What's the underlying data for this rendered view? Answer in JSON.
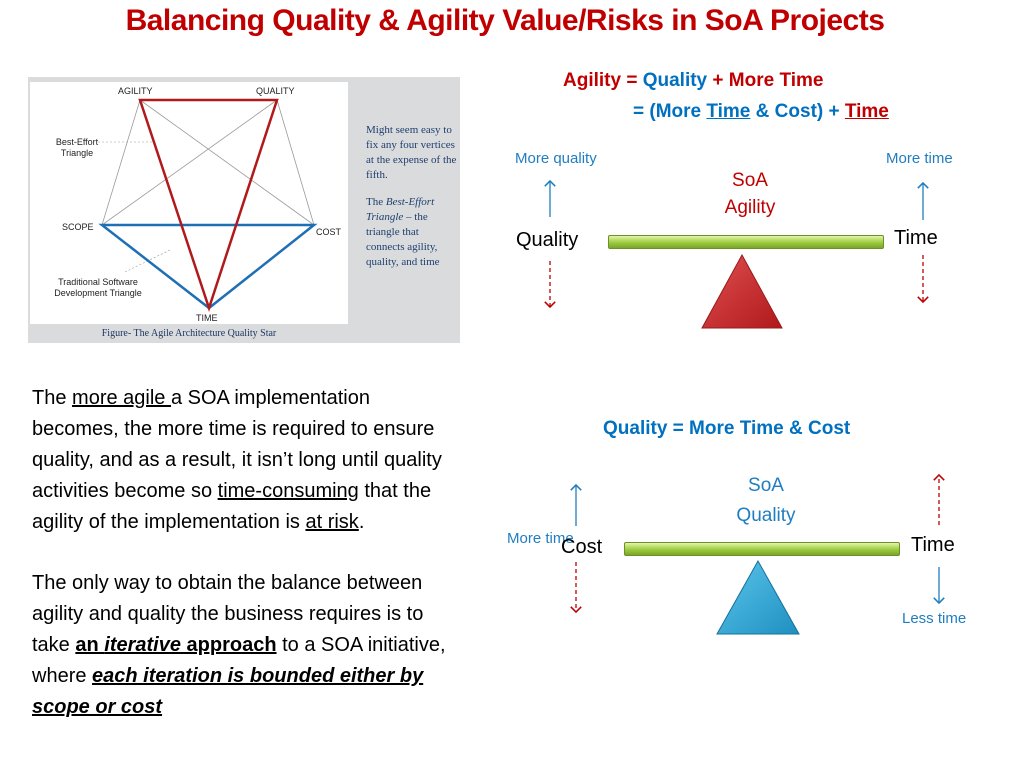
{
  "title": "Balancing Quality & Agility Value/Risks in SoA Projects",
  "figure": {
    "vertices": {
      "agility": "AGILITY",
      "quality": "QUALITY",
      "scope": "SCOPE",
      "cost": "COST",
      "time": "TIME"
    },
    "best_effort_label_1": "Best-Effort",
    "best_effort_label_2": "Triangle",
    "traditional_label_1": "Traditional Software",
    "traditional_label_2": "Development Triangle",
    "caption": "Figure- The Agile Architecture Quality Star",
    "side_note_1": "Might seem easy to fix any four vertices at the expense of the fifth.",
    "side_note_2_prefix": "The ",
    "side_note_2_italic": "Best-Effort Triangle",
    "side_note_2_suffix": " – the triangle that connects agility, quality, and time",
    "colors": {
      "red_triangle": "#b01a1a",
      "blue_triangle": "#1f6fb5"
    }
  },
  "body": {
    "p1_a": "The ",
    "p1_link1": "more agile ",
    "p1_b": "a SOA implementation becomes, the more time is required to ensure quality, and as a result, it isn’t long until quality activities become so ",
    "p1_link2": "time-consuming",
    "p1_c": " that the agility of the implementation is ",
    "p1_link3": "at risk",
    "p1_d": ".",
    "p2_a": "The only way to obtain the balance between agility and quality the business requires is to take ",
    "p2_b1": "an ",
    "p2_b2": "iterative",
    "p2_b3": " approach",
    "p2_c": " to a SOA initiative, where ",
    "p2_d": "each iteration is bounded either by scope or cost"
  },
  "agility_balance": {
    "formula1_a": "Agility = ",
    "formula1_b": "Quality",
    "formula1_c": " + More Time",
    "formula2_a": "= (More ",
    "formula2_b": "Time",
    "formula2_c": " & Cost) + ",
    "formula2_d": "Time",
    "more_quality": "More quality",
    "more_time": "More time",
    "center_label_1": "SoA",
    "center_label_2": "Agility",
    "left_label": "Quality",
    "right_label": "Time",
    "fulcrum_color": "#c0282a"
  },
  "quality_balance": {
    "formula": "Quality = More Time & Cost",
    "center_label_1": "SoA",
    "center_label_2": "Quality",
    "more_time": "More time",
    "left_label": "Cost",
    "right_label": "Time",
    "less_time": "Less time",
    "fulcrum_color": "#2aa0d0"
  }
}
